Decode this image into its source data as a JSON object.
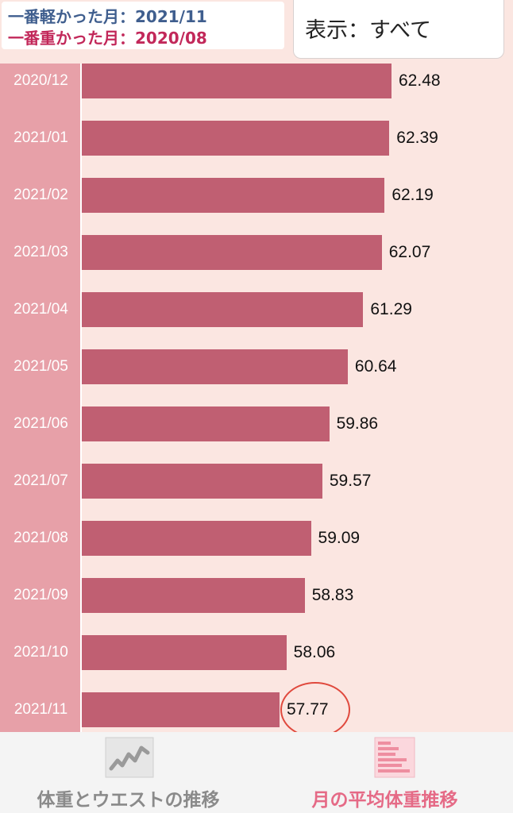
{
  "summary": {
    "lightest_label": "一番軽かった月：2021/11",
    "heaviest_label": "一番重かった月：2020/08",
    "lightest_color": "#3f5e8e",
    "heaviest_color": "#c2285a"
  },
  "display_filter": {
    "label": "表示：すべて"
  },
  "chart_data": {
    "type": "bar",
    "orientation": "horizontal",
    "categories": [
      "2020/12",
      "2021/01",
      "2021/02",
      "2021/03",
      "2021/04",
      "2021/05",
      "2021/06",
      "2021/07",
      "2021/08",
      "2021/09",
      "2021/10",
      "2021/11"
    ],
    "values": [
      62.48,
      62.39,
      62.19,
      62.07,
      61.29,
      60.64,
      59.86,
      59.57,
      59.09,
      58.83,
      58.06,
      57.77
    ],
    "value_labels": [
      "62.48",
      "62.39",
      "62.19",
      "62.07",
      "61.29",
      "60.64",
      "59.86",
      "59.57",
      "59.09",
      "58.83",
      "58.06",
      "57.77"
    ],
    "highlighted_category": "2021/11",
    "bar_color": "#c05f72",
    "grid": false
  },
  "tabbar": {
    "tabs": [
      {
        "label": "体重とウエストの推移",
        "icon": "line-chart-icon",
        "active": false
      },
      {
        "label": "月の平均体重推移",
        "icon": "bar-chart-icon",
        "active": true
      }
    ]
  }
}
